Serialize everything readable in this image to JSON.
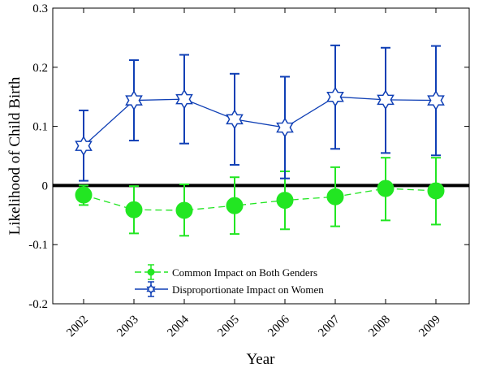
{
  "chart_data": {
    "type": "line",
    "xlabel": "Year",
    "ylabel": "Likelihood of Child Birth",
    "ylim": [
      -0.2,
      0.3
    ],
    "yticks": [
      -0.2,
      -0.1,
      0,
      0.1,
      0.2,
      0.3
    ],
    "ytick_labels": [
      "-0.2",
      "-0.1",
      "0",
      "0.1",
      "0.2",
      "0.3"
    ],
    "categories": [
      "2002",
      "2003",
      "2004",
      "2005",
      "2006",
      "2007",
      "2008",
      "2009"
    ],
    "zero_line": true,
    "grid": false,
    "legend_position": "bottom-left",
    "series": [
      {
        "name": "Common Impact on Both Genders",
        "color": "#22e622",
        "line_style": "dashed",
        "marker": "filled-circle",
        "values": [
          -0.016,
          -0.041,
          -0.042,
          -0.034,
          -0.025,
          -0.019,
          -0.005,
          -0.009
        ],
        "err_low": [
          -0.033,
          -0.081,
          -0.085,
          -0.082,
          -0.074,
          -0.069,
          -0.059,
          -0.066
        ],
        "err_high": [
          0.0,
          -0.001,
          0.002,
          0.014,
          0.024,
          0.031,
          0.047,
          0.047
        ]
      },
      {
        "name": "Disproportionate Impact on Women",
        "color": "#0f3fb5",
        "line_style": "solid",
        "marker": "hexagram",
        "values": [
          0.067,
          0.144,
          0.146,
          0.112,
          0.098,
          0.15,
          0.145,
          0.144
        ],
        "err_low": [
          0.008,
          0.076,
          0.071,
          0.035,
          0.012,
          0.062,
          0.055,
          0.051
        ],
        "err_high": [
          0.127,
          0.212,
          0.221,
          0.189,
          0.184,
          0.237,
          0.233,
          0.236
        ]
      }
    ]
  }
}
